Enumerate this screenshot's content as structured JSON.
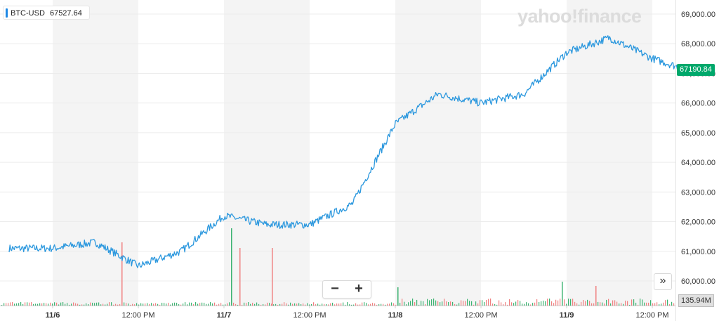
{
  "legend": {
    "symbol": "BTC-USD",
    "value": "67527.64"
  },
  "watermark": "yahoo!finance",
  "price_badge": "67190.84",
  "volume_badge": "135.94M",
  "zoom": {
    "minus": "−",
    "plus": "+"
  },
  "next_button": "»",
  "colors": {
    "line": "#2c98de",
    "up": "#3cb371",
    "down": "#f08080",
    "badge": "#00a86b",
    "shade": "#f4f4f4"
  },
  "chart_data": {
    "type": "line",
    "series": [
      {
        "x": [
          "11/6 00:00",
          "11/6 06:00",
          "11/6 12:00",
          "11/6 18:00",
          "11/7 00:00",
          "11/7 06:00",
          "11/7 12:00",
          "11/7 18:00",
          "11/8 00:00",
          "11/8 06:00",
          "11/8 12:00",
          "11/8 18:00",
          "11/9 00:00",
          "11/9 06:00",
          "11/9 12:00",
          "11/9 16:00"
        ],
        "values": [
          61100,
          61300,
          60500,
          61000,
          62200,
          61900,
          61900,
          62600,
          65300,
          66300,
          66000,
          66300,
          67700,
          68200,
          67500,
          67190.84
        ]
      }
    ],
    "yticks": [
      "60,000.00",
      "61,000.00",
      "62,000.00",
      "63,000.00",
      "64,000.00",
      "65,000.00",
      "66,000.00",
      "67,000.00",
      "68,000.00",
      "69,000.00"
    ],
    "ylim": [
      59600,
      69200
    ],
    "xticks": [
      {
        "label": "11/6",
        "bold": true
      },
      {
        "label": "12:00 PM",
        "bold": false
      },
      {
        "label": "11/7",
        "bold": true
      },
      {
        "label": "12:00 PM",
        "bold": false
      },
      {
        "label": "11/8",
        "bold": true
      },
      {
        "label": "12:00 PM",
        "bold": false
      },
      {
        "label": "11/9",
        "bold": true
      },
      {
        "label": "12:00 PM",
        "bold": false
      }
    ],
    "grid": true
  }
}
